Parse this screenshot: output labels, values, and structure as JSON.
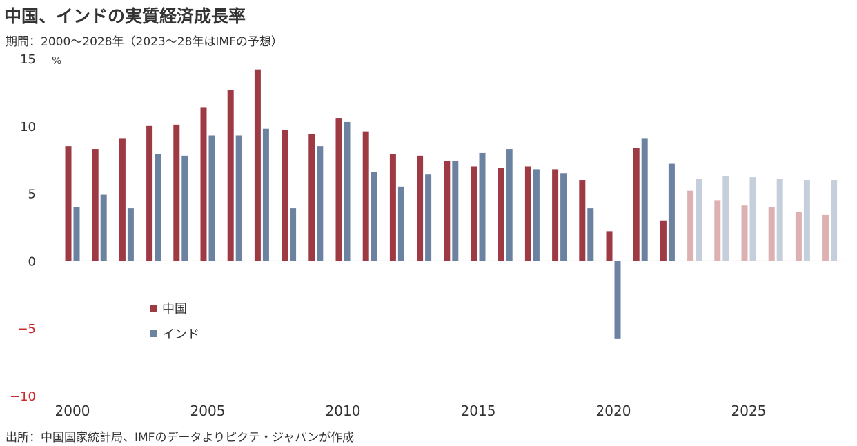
{
  "title": "中国、インドの実質経済成長率",
  "subtitle": "期間：2000～2028年（2023～28年はIMFの予想）",
  "source": "出所：中国国家統計局、IMFのデータよりピクテ・ジャパンが作成",
  "chart_data": {
    "type": "bar",
    "y_unit": "%",
    "ylim": [
      -10,
      15
    ],
    "y_ticks": [
      "15",
      "10",
      "5",
      "0",
      "−5",
      "−10"
    ],
    "x_ticks": [
      "2000",
      "2005",
      "2010",
      "2015",
      "2020",
      "2025"
    ],
    "categories": [
      2000,
      2001,
      2002,
      2003,
      2004,
      2005,
      2006,
      2007,
      2008,
      2009,
      2010,
      2011,
      2012,
      2013,
      2014,
      2015,
      2016,
      2017,
      2018,
      2019,
      2020,
      2021,
      2022,
      2023,
      2024,
      2025,
      2026,
      2027,
      2028
    ],
    "forecast_from": 2023,
    "legend_position": "lower-left inside plot",
    "grid": false,
    "series": [
      {
        "name": "中国",
        "color": "#9e3a44",
        "forecast_color": "#ddb0b2",
        "values": [
          8.5,
          8.3,
          9.1,
          10.0,
          10.1,
          11.4,
          12.7,
          14.2,
          9.7,
          9.4,
          10.6,
          9.6,
          7.9,
          7.8,
          7.4,
          7.0,
          6.9,
          7.0,
          6.8,
          6.0,
          2.2,
          8.4,
          3.0,
          5.2,
          4.5,
          4.1,
          4.0,
          3.6,
          3.4
        ]
      },
      {
        "name": "インド",
        "color": "#6b82a0",
        "forecast_color": "#c5cfdb",
        "values": [
          4.0,
          4.9,
          3.9,
          7.9,
          7.8,
          9.3,
          9.3,
          9.8,
          3.9,
          8.5,
          10.3,
          6.6,
          5.5,
          6.4,
          7.4,
          8.0,
          8.3,
          6.8,
          6.5,
          3.9,
          -5.8,
          9.1,
          7.2,
          6.1,
          6.3,
          6.2,
          6.1,
          6.0,
          6.0
        ]
      }
    ]
  }
}
